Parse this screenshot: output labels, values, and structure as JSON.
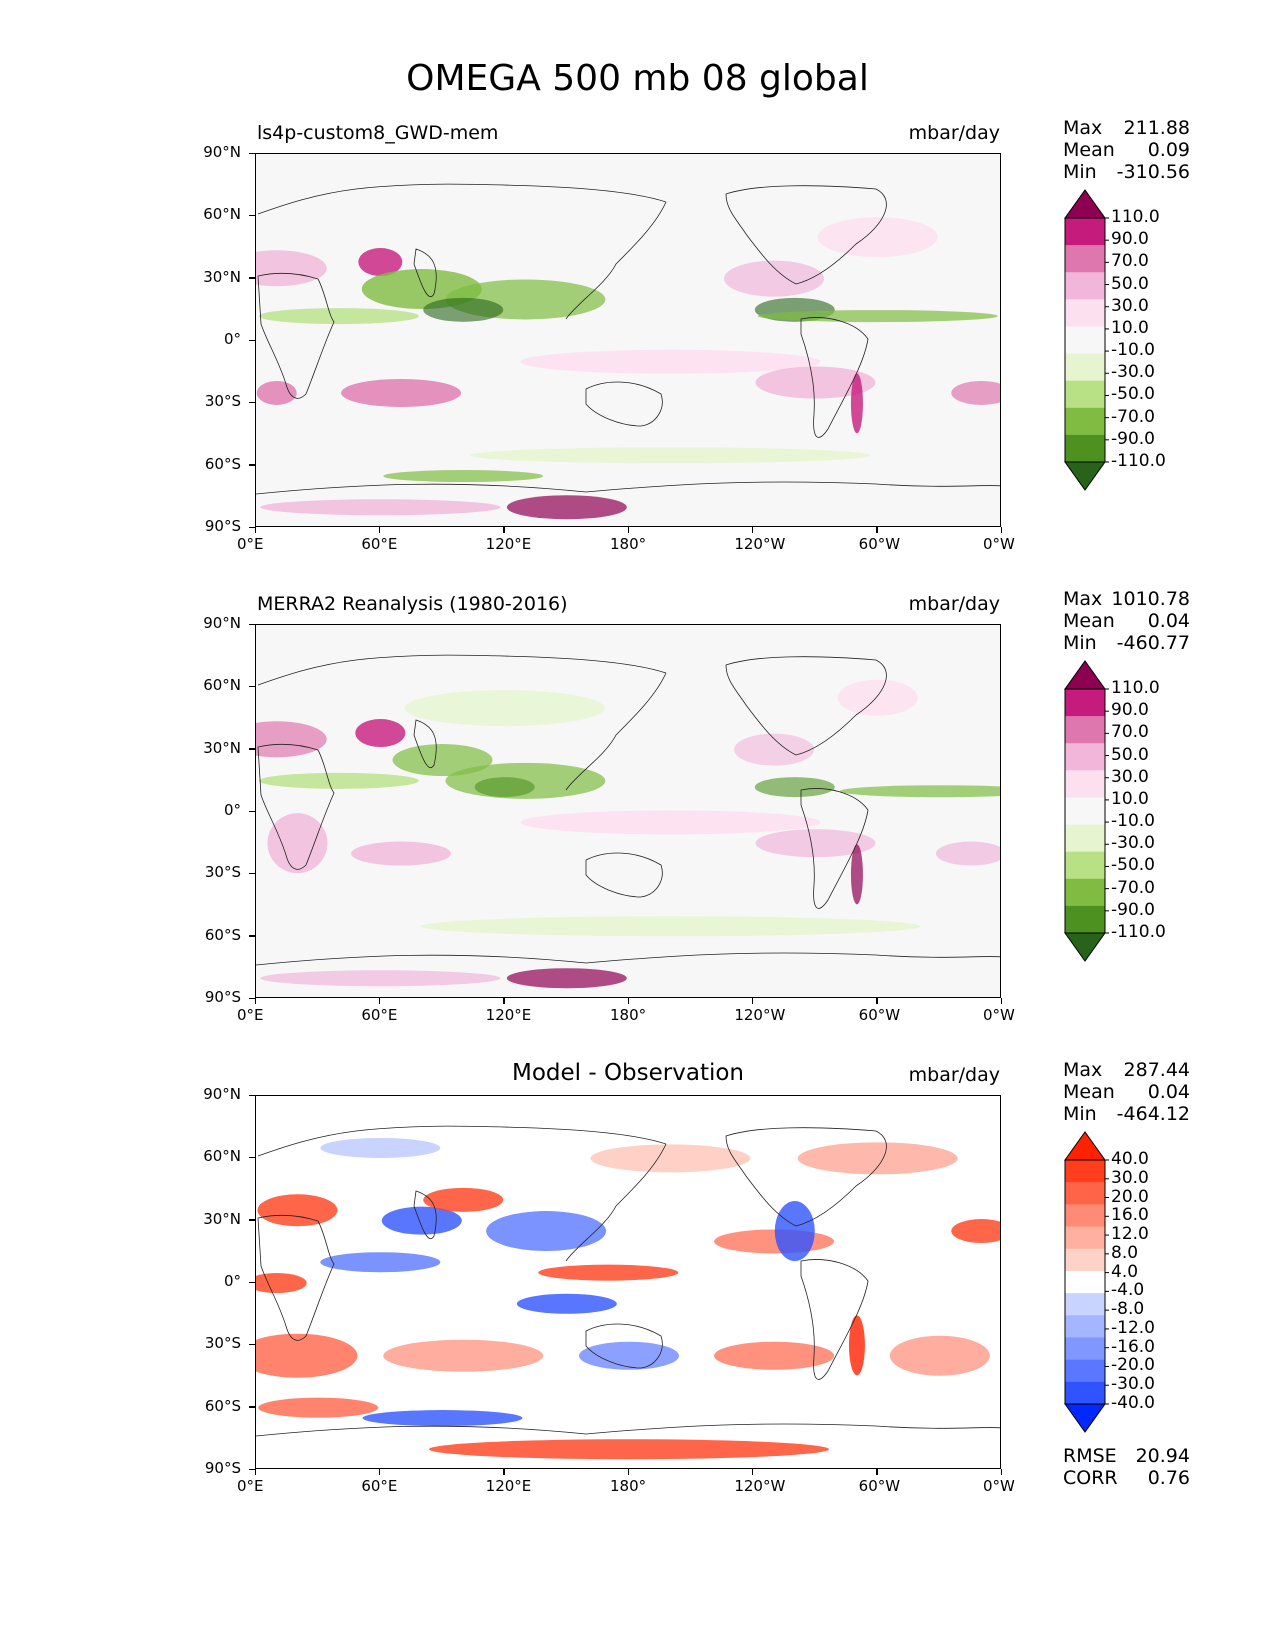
{
  "title": "OMEGA 500 mb 08 global",
  "x_ticks": [
    "0°E",
    "60°E",
    "120°E",
    "180°",
    "120°W",
    "60°W",
    "0°W"
  ],
  "y_ticks": [
    "90°N",
    "60°N",
    "30°N",
    "0°",
    "30°S",
    "60°S",
    "90°S"
  ],
  "stat_labels": {
    "max": "Max",
    "mean": "Mean",
    "min": "Min",
    "rmse": "RMSE",
    "corr": "CORR"
  },
  "colors": {
    "pg": [
      "#276419",
      "#4d9221",
      "#7fbc41",
      "#b8e186",
      "#e6f5d0",
      "#f7f7f7",
      "#fde0ef",
      "#f1b6da",
      "#de77ae",
      "#c51b7d",
      "#8e0152"
    ],
    "bwr": [
      "#0028ff",
      "#2f54ff",
      "#5a78ff",
      "#7f97ff",
      "#a4b6ff",
      "#c8d4ff",
      "#ffffff",
      "#ffd2c8",
      "#ffb0a0",
      "#ff8a75",
      "#ff6449",
      "#ff3f1c",
      "#ff2200"
    ]
  },
  "panels": [
    {
      "title": "ls4p-custom8_GWD-mem",
      "units": "mbar/day",
      "stats": {
        "max": "211.88",
        "mean": "0.09",
        "min": "-310.56"
      },
      "colorbar_labels": [
        "110.0",
        "90.0",
        "70.0",
        "50.0",
        "30.0",
        "10.0",
        "-10.0",
        "-30.0",
        "-50.0",
        "-70.0",
        "-90.0",
        "-110.0"
      ]
    },
    {
      "title": "MERRA2 Reanalysis (1980-2016)",
      "units": "mbar/day",
      "stats": {
        "max": "1010.78",
        "mean": "0.04",
        "min": "-460.77"
      },
      "colorbar_labels": [
        "110.0",
        "90.0",
        "70.0",
        "50.0",
        "30.0",
        "10.0",
        "-10.0",
        "-30.0",
        "-50.0",
        "-70.0",
        "-90.0",
        "-110.0"
      ]
    },
    {
      "title": "Model - Observation",
      "units": "mbar/day",
      "stats": {
        "max": "287.44",
        "mean": "0.04",
        "min": "-464.12",
        "rmse": "20.94",
        "corr": "0.76"
      },
      "colorbar_labels": [
        "40.0",
        "30.0",
        "20.0",
        "16.0",
        "12.0",
        "8.0",
        "4.0",
        "-4.0",
        "-8.0",
        "-12.0",
        "-16.0",
        "-20.0",
        "-30.0",
        "-40.0"
      ]
    }
  ]
}
